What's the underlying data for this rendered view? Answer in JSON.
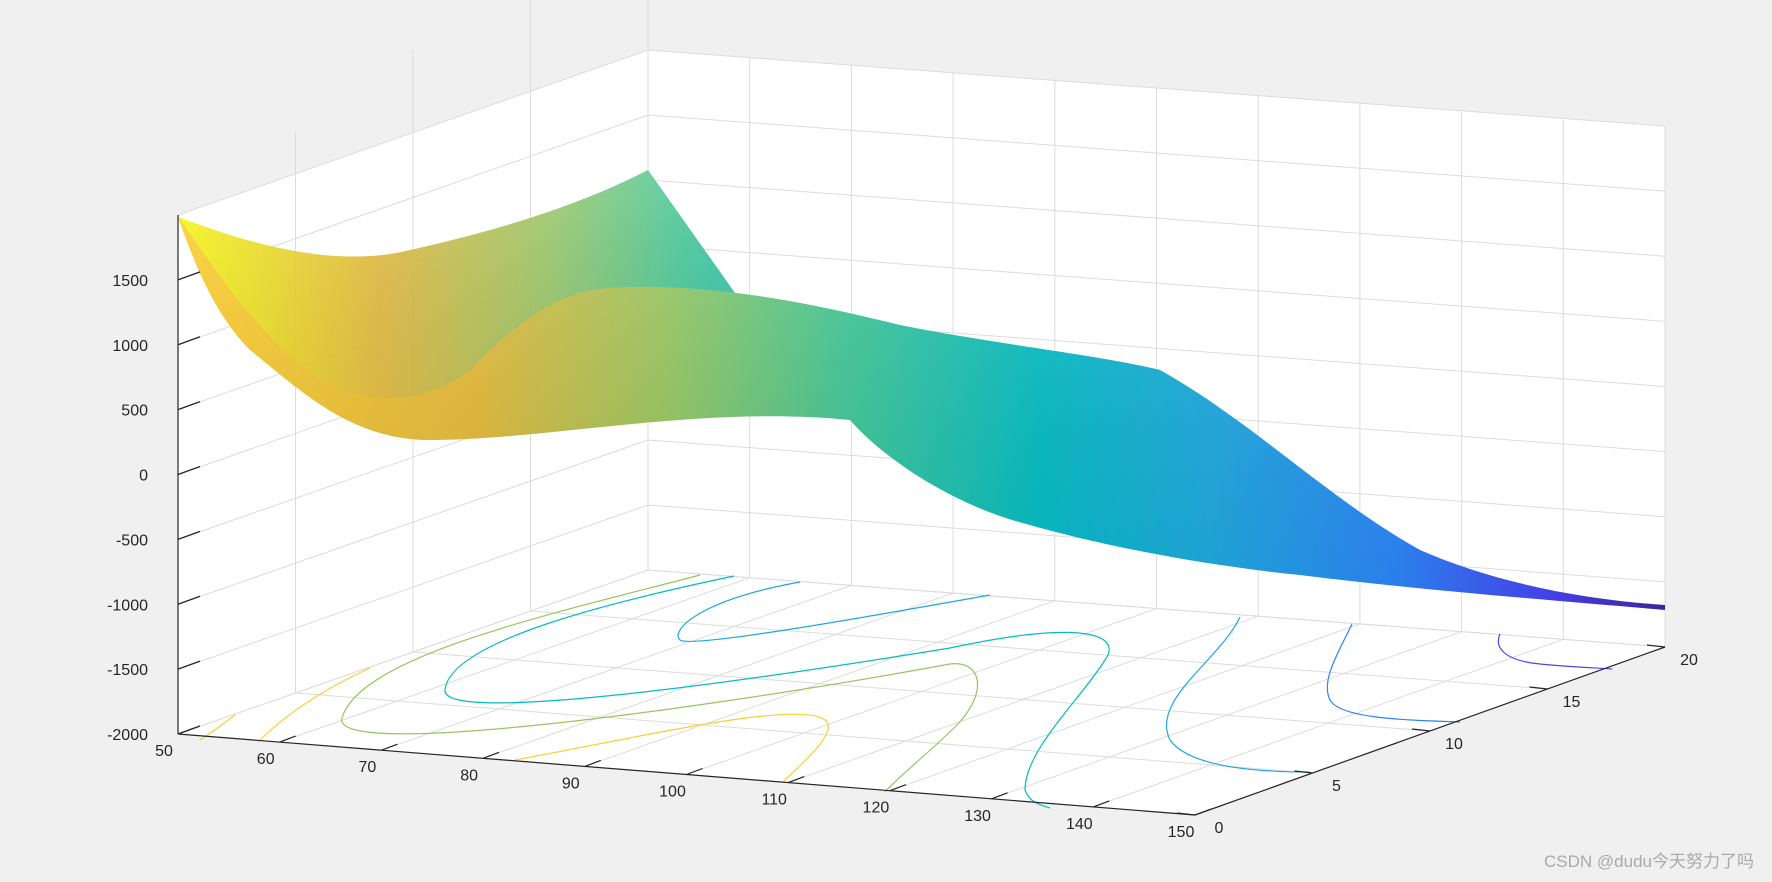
{
  "chart_data": {
    "type": "surface",
    "title": "",
    "xlabel": "",
    "ylabel": "",
    "zlabel": "",
    "xlim": [
      50,
      150
    ],
    "ylim": [
      0,
      20
    ],
    "zlim": [
      -2000,
      2000
    ],
    "x_ticks": [
      "50",
      "60",
      "70",
      "80",
      "90",
      "100",
      "110",
      "120",
      "130",
      "140",
      "150"
    ],
    "y_ticks": [
      "0",
      "5",
      "10",
      "15",
      "20"
    ],
    "z_ticks": [
      "-2000",
      "-1500",
      "-1000",
      "-500",
      "0",
      "500",
      "1000",
      "1500"
    ],
    "grid": true,
    "colormap": "parula",
    "colormap_stops": [
      "#3e26a8",
      "#4745f3",
      "#2c85f8",
      "#1fa8e0",
      "#04bcc4",
      "#3fc696",
      "#97c661",
      "#e4b938",
      "#fcce2e",
      "#f9fb0e"
    ],
    "surface_samples": {
      "x": [
        50,
        60,
        70,
        80,
        90,
        100,
        110,
        120,
        130,
        140,
        150
      ],
      "y_back": [
        1750,
        900,
        600,
        600,
        700,
        750,
        750,
        700,
        500,
        0,
        -500
      ],
      "y_front": [
        1750,
        750,
        550,
        500,
        600,
        950,
        1100,
        800,
        100,
        -650,
        -900
      ]
    },
    "contour_plot": {
      "projected_on_floor": true,
      "line_colors": [
        "#fcce2e",
        "#97c661",
        "#04bcc4",
        "#1fa8e0",
        "#4745f3"
      ]
    }
  },
  "watermark": "CSDN @dudu今天努力了吗"
}
